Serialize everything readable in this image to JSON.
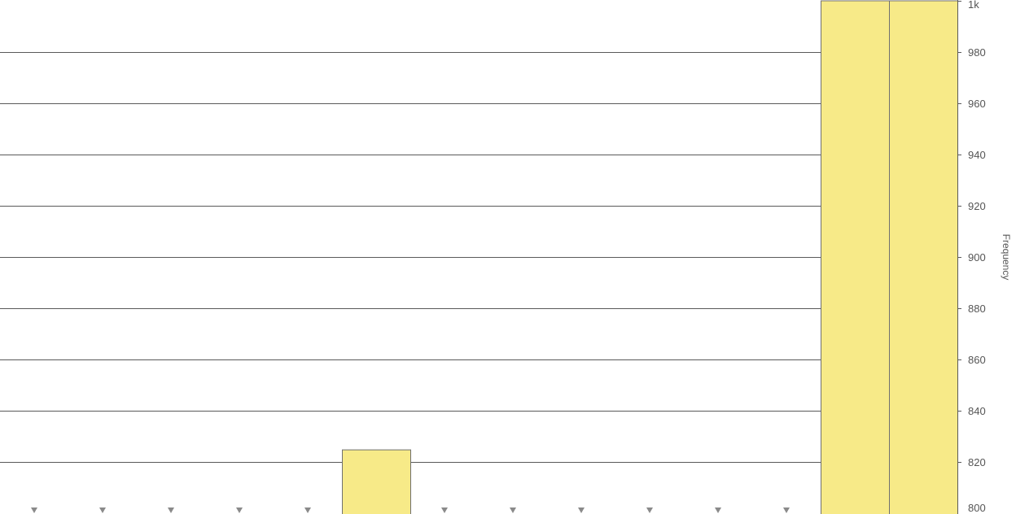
{
  "chart_data": {
    "type": "bar",
    "title": "",
    "xlabel": "",
    "ylabel": "Frequency",
    "ylim": [
      800,
      1000
    ],
    "grid": true,
    "y_axis_position": "right",
    "y_ticks": [
      {
        "value": 800,
        "label": "800"
      },
      {
        "value": 820,
        "label": "820"
      },
      {
        "value": 840,
        "label": "840"
      },
      {
        "value": 860,
        "label": "860"
      },
      {
        "value": 880,
        "label": "880"
      },
      {
        "value": 900,
        "label": "900"
      },
      {
        "value": 920,
        "label": "920"
      },
      {
        "value": 940,
        "label": "940"
      },
      {
        "value": 960,
        "label": "960"
      },
      {
        "value": 980,
        "label": "980"
      },
      {
        "value": 1000,
        "label": "1k"
      }
    ],
    "bar_count": 14,
    "values": [
      null,
      null,
      null,
      null,
      null,
      825,
      null,
      null,
      null,
      null,
      null,
      null,
      1000,
      1000
    ],
    "below_range_marker_indices": [
      0,
      1,
      2,
      3,
      4,
      6,
      7,
      8,
      9,
      10,
      11
    ],
    "colors": {
      "bar_fill": "#f7ea88",
      "bar_stroke": "#707070",
      "grid": "#5a5a5a",
      "marker": "#8a8a8a",
      "tick_text": "#555555"
    }
  }
}
